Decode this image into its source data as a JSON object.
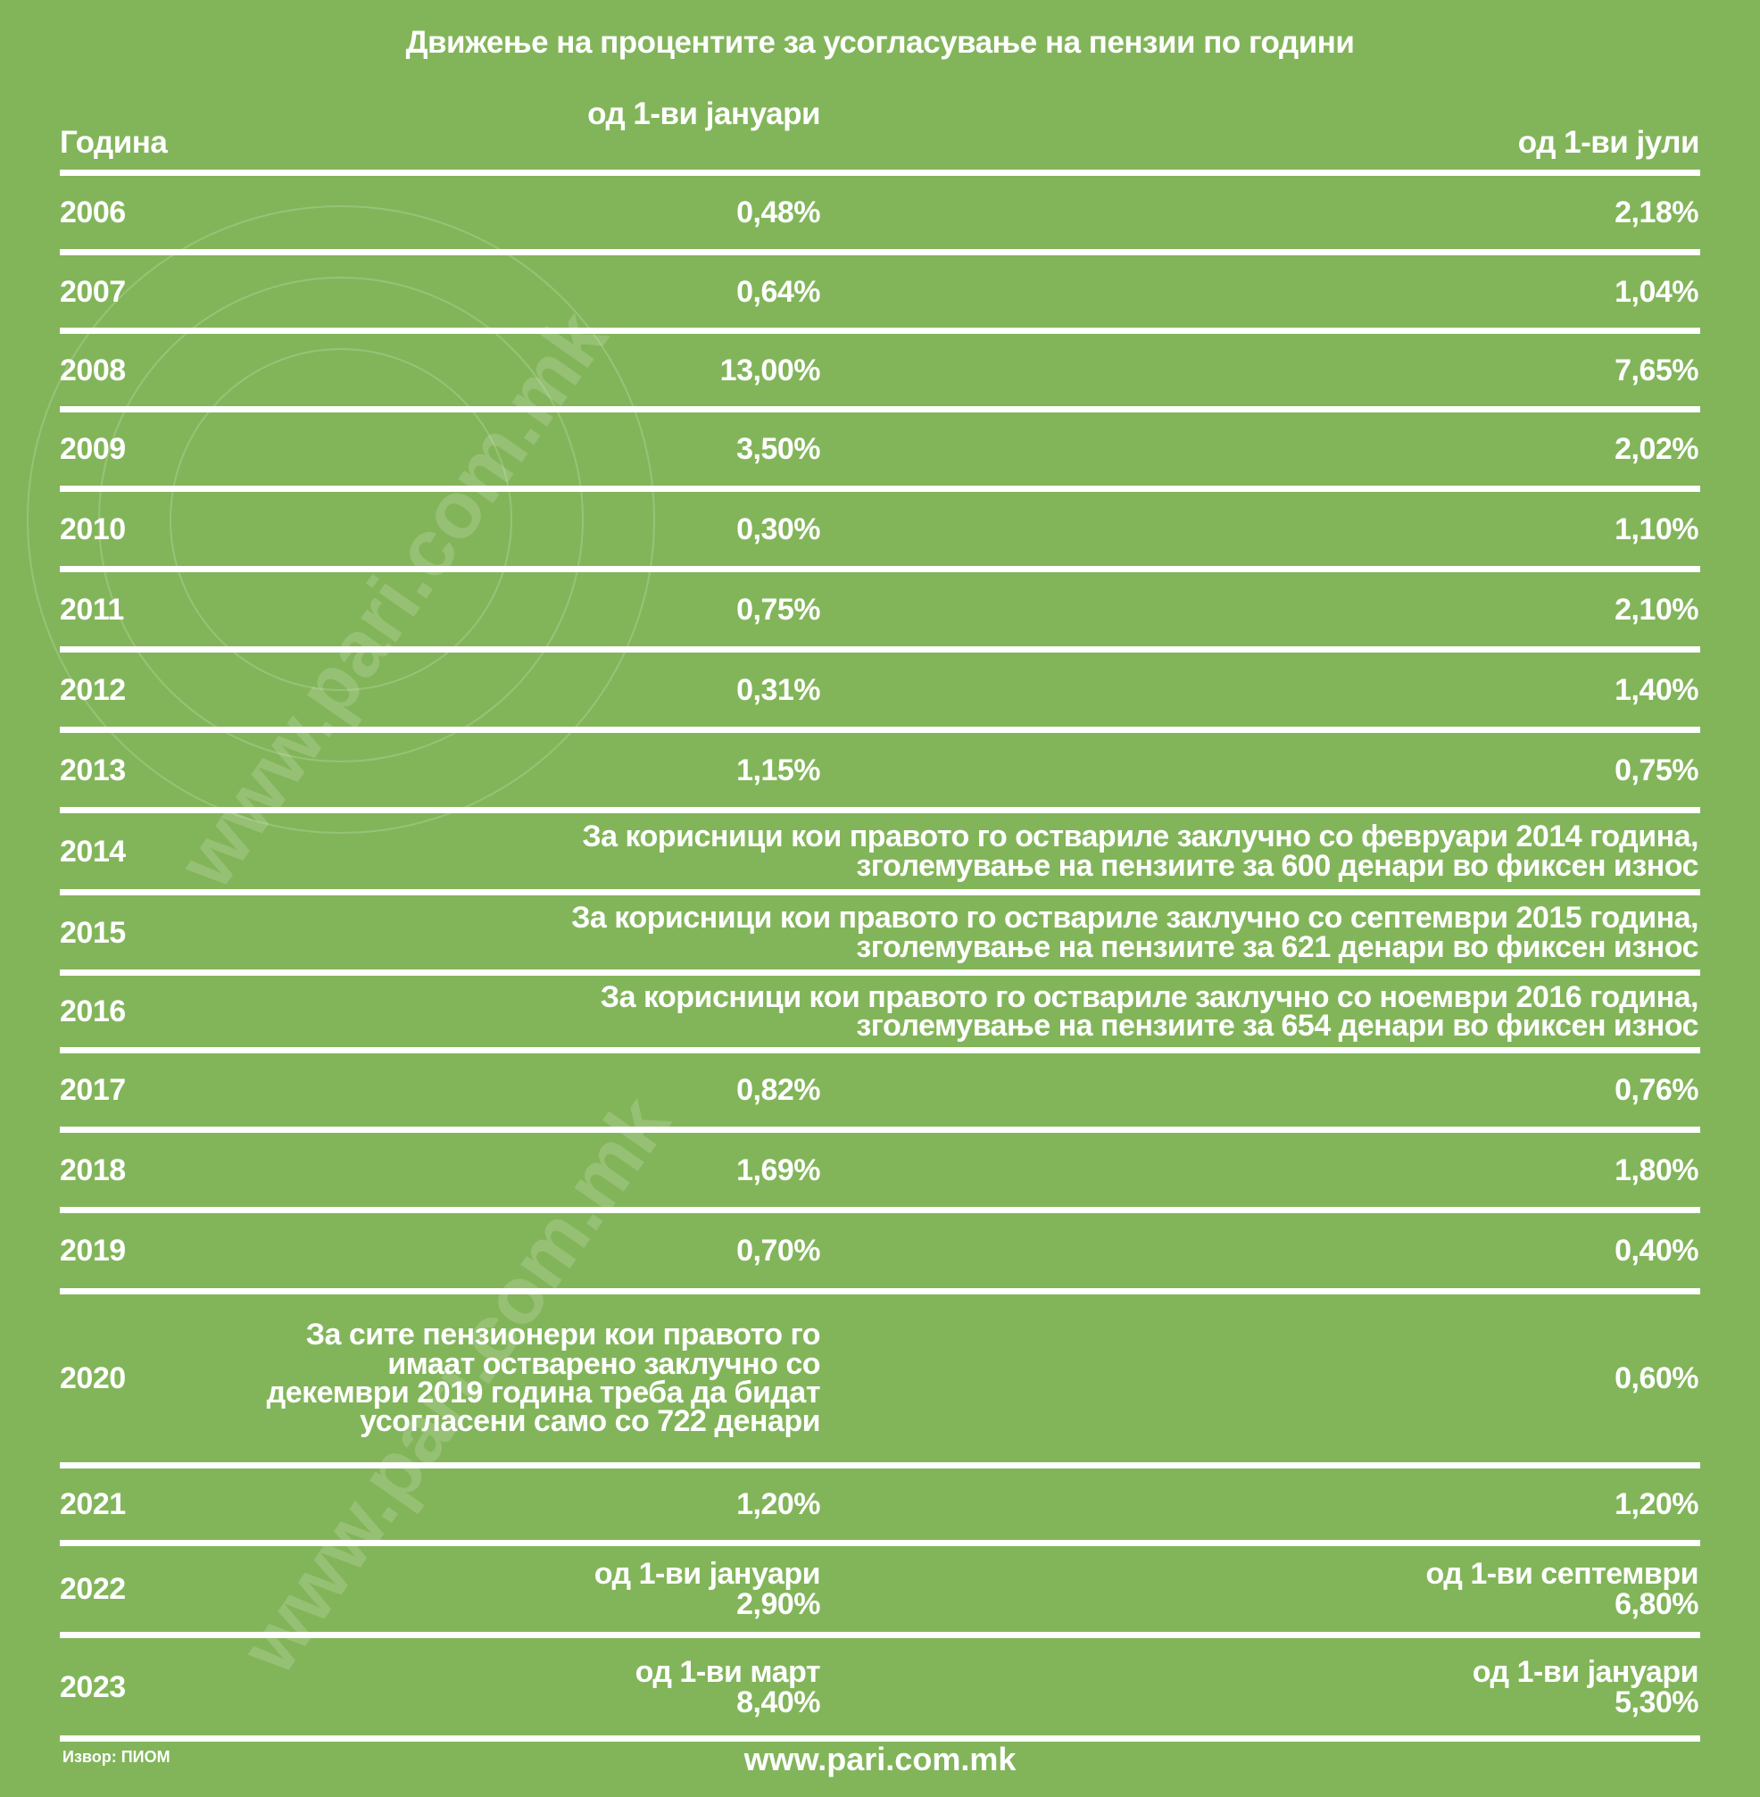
{
  "title": "Движење на процентите за усогласување на пензии по години",
  "headers": {
    "year": "Година",
    "january": "од 1-ви јануари",
    "july": "од 1-ви јули"
  },
  "rows": [
    {
      "year": "2006",
      "jan": "0,48%",
      "jul": "2,18%"
    },
    {
      "year": "2007",
      "jan": "0,64%",
      "jul": "1,04%"
    },
    {
      "year": "2008",
      "jan": "13,00%",
      "jul": "7,65%"
    },
    {
      "year": "2009",
      "jan": "3,50%",
      "jul": "2,02%"
    },
    {
      "year": "2010",
      "jan": "0,30%",
      "jul": "1,10%"
    },
    {
      "year": "2011",
      "jan": "0,75%",
      "jul": "2,10%"
    },
    {
      "year": "2012",
      "jan": "0,31%",
      "jul": "1,40%"
    },
    {
      "year": "2013",
      "jan": "1,15%",
      "jul": "0,75%"
    },
    {
      "year": "2014",
      "note": "За корисници кои правото го оствариле заклучно со февруари 2014 година, зголемување на пензиите за 600 денари во фиксен износ"
    },
    {
      "year": "2015",
      "note": "За корисници кои правото го оствариле заклучно со септември 2015 година, зголемување на пензиите за 621 денари во фиксен износ"
    },
    {
      "year": "2016",
      "note": "За корисници кои правото го оствариле заклучно со ноември 2016 година, зголемување на пензиите за 654 денари во фиксен износ"
    },
    {
      "year": "2017",
      "jan": "0,82%",
      "jul": "0,76%"
    },
    {
      "year": "2018",
      "jan": "1,69%",
      "jul": "1,80%"
    },
    {
      "year": "2019",
      "jan": "0,70%",
      "jul": "0,40%"
    },
    {
      "year": "2020",
      "jan": "За сите пензионери кои правото го имаат остварено заклучно со декември 2019 година треба да бидат усогласени само со 722 денари",
      "jul": "0,60%"
    },
    {
      "year": "2021",
      "jan": "1,20%",
      "jul": "1,20%"
    },
    {
      "year": "2022",
      "jan_label": "од 1-ви јануари",
      "jan": "2,90%",
      "jul_label": "од 1-ви септември",
      "jul": "6,80%"
    },
    {
      "year": "2023",
      "jan_label": "од 1-ви март",
      "jan": "8,40%",
      "jul_label": "од 1-ви јануари",
      "jul": "5,30%"
    }
  ],
  "footer": {
    "source": "Извор: ПИОМ",
    "site": "www.pari.com.mk"
  },
  "watermark": "www.pari.com.mk"
}
